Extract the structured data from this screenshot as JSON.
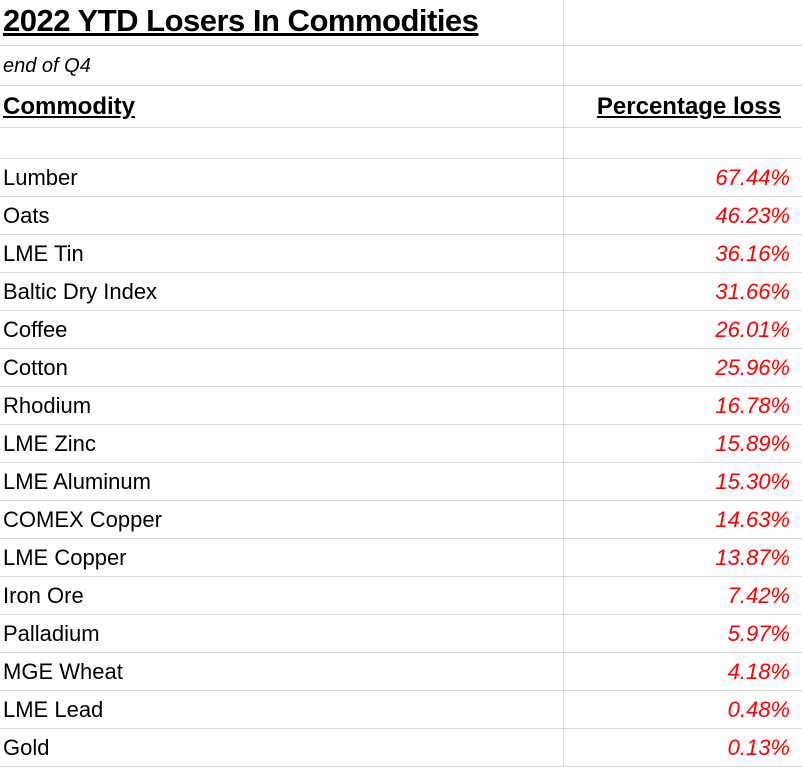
{
  "title": "2022 YTD Losers In Commodities",
  "subtitle": "end of Q4",
  "columns": {
    "commodity": "Commodity",
    "loss": "Percentage loss"
  },
  "rows": [
    {
      "commodity": "Lumber",
      "loss": "67.44%"
    },
    {
      "commodity": "Oats",
      "loss": "46.23%"
    },
    {
      "commodity": "LME Tin",
      "loss": "36.16%"
    },
    {
      "commodity": "Baltic Dry Index",
      "loss": "31.66%"
    },
    {
      "commodity": "Coffee",
      "loss": "26.01%"
    },
    {
      "commodity": "Cotton",
      "loss": "25.96%"
    },
    {
      "commodity": "Rhodium",
      "loss": "16.78%"
    },
    {
      "commodity": "LME Zinc",
      "loss": "15.89%"
    },
    {
      "commodity": "LME Aluminum",
      "loss": "15.30%"
    },
    {
      "commodity": "COMEX Copper",
      "loss": "14.63%"
    },
    {
      "commodity": "LME Copper",
      "loss": "13.87%"
    },
    {
      "commodity": "Iron Ore",
      "loss": "7.42%"
    },
    {
      "commodity": "Palladium",
      "loss": "5.97%"
    },
    {
      "commodity": "MGE Wheat",
      "loss": "4.18%"
    },
    {
      "commodity": "LME Lead",
      "loss": "0.48%"
    },
    {
      "commodity": "Gold",
      "loss": "0.13%"
    }
  ],
  "colors": {
    "loss_text": "#ff0000",
    "gridline": "#d9d9d9"
  }
}
